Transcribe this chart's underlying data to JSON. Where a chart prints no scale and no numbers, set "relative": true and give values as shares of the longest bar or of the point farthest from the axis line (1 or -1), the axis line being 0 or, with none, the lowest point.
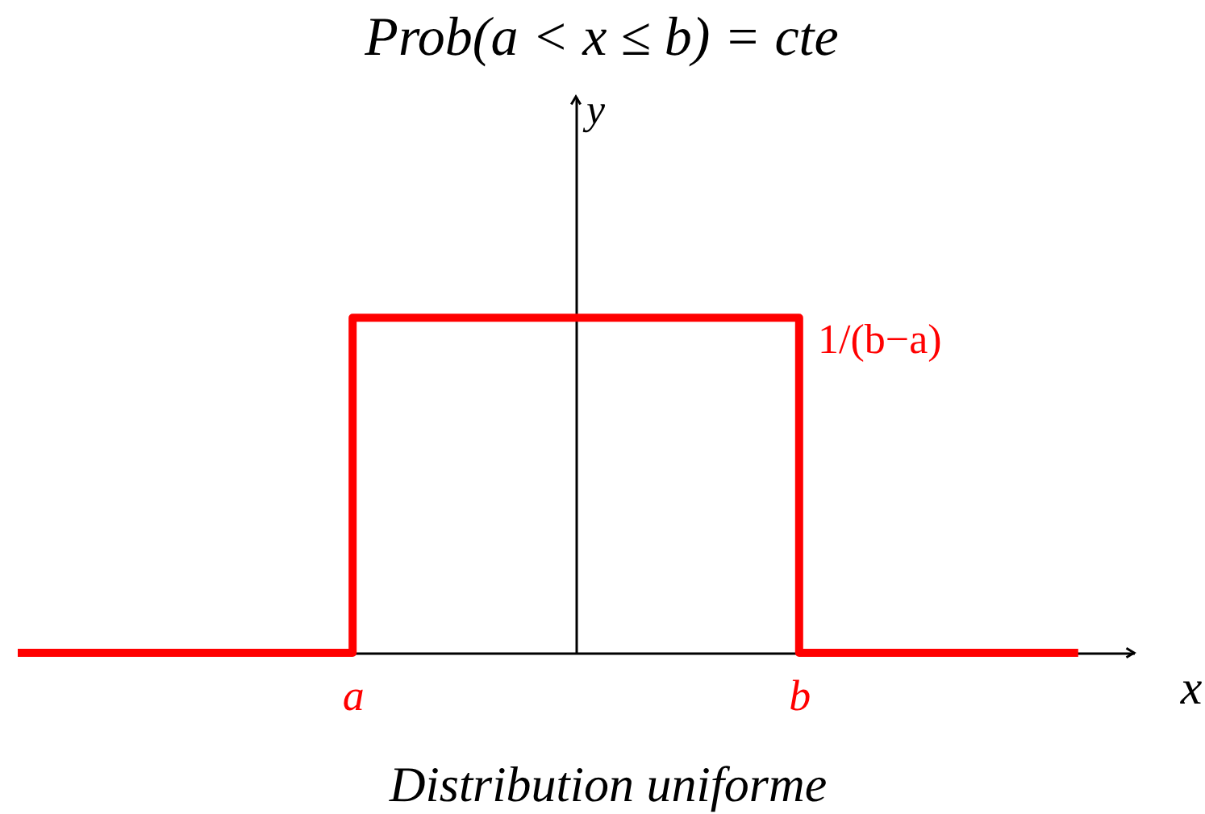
{
  "chart_data": {
    "type": "step",
    "title": "Prob(a < x ≤ b) = cte",
    "xlabel": "x",
    "ylabel": "y",
    "categories": [
      null,
      null,
      null,
      null,
      null,
      null,
      "a",
      null,
      null,
      null,
      null,
      null,
      null,
      null,
      "b",
      null,
      null,
      null,
      null,
      null,
      null
    ],
    "series": [
      {
        "color": "#ff0000",
        "values": [
          0,
          0,
          0,
          0,
          0,
          0,
          1,
          1,
          1,
          1,
          1,
          1,
          1,
          1,
          0,
          0,
          0,
          0,
          0,
          0,
          null
        ]
      }
    ],
    "relative": true,
    "annotations": [
      {
        "text": "1/(b−a)",
        "x": "b",
        "y": 1
      },
      "Distribution uniforme"
    ]
  }
}
